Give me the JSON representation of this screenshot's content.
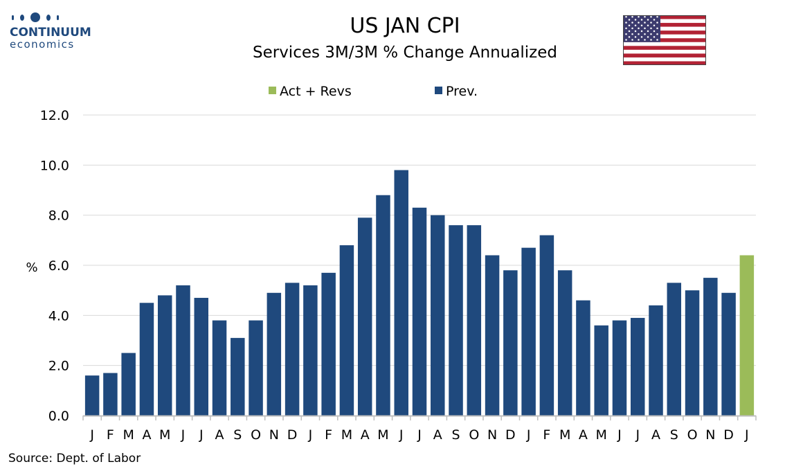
{
  "logo": {
    "line1": "CONTINUUM",
    "line2": "economics"
  },
  "flag_icon": "us-flag-icon",
  "colors": {
    "prev": "#1f497d",
    "act": "#9bbb59",
    "grid": "#d9d9d9"
  },
  "source": "Source: Dept. of Labor",
  "chart_data": {
    "type": "bar",
    "title": "US JAN CPI",
    "subtitle": "Services 3M/3M % Change Annualized",
    "xlabel": "",
    "ylabel": "%",
    "ylim": [
      0,
      12
    ],
    "yticks": [
      "0.0",
      "2.0",
      "4.0",
      "6.0",
      "8.0",
      "10.0",
      "12.0"
    ],
    "grid": true,
    "legend_position": "top",
    "legend": [
      {
        "name": "Act + Revs",
        "color": "#9bbb59"
      },
      {
        "name": "Prev.",
        "color": "#1f497d"
      }
    ],
    "categories": [
      "J",
      "F",
      "M",
      "A",
      "M",
      "J",
      "J",
      "A",
      "S",
      "O",
      "N",
      "D",
      "J",
      "F",
      "M",
      "A",
      "M",
      "J",
      "J",
      "A",
      "S",
      "O",
      "N",
      "D",
      "J",
      "F",
      "M",
      "A",
      "M",
      "J",
      "J",
      "A",
      "S",
      "O",
      "N",
      "D",
      "J"
    ],
    "values": [
      1.6,
      1.7,
      2.5,
      4.5,
      4.8,
      5.2,
      4.7,
      3.8,
      3.1,
      3.8,
      4.9,
      5.3,
      5.2,
      5.7,
      6.8,
      7.9,
      8.8,
      9.8,
      8.3,
      8.0,
      7.6,
      7.6,
      6.4,
      5.8,
      6.7,
      7.2,
      5.8,
      4.6,
      3.6,
      3.8,
      3.9,
      4.4,
      5.3,
      5.0,
      5.5,
      4.9,
      6.4
    ],
    "series_index": [
      1,
      1,
      1,
      1,
      1,
      1,
      1,
      1,
      1,
      1,
      1,
      1,
      1,
      1,
      1,
      1,
      1,
      1,
      1,
      1,
      1,
      1,
      1,
      1,
      1,
      1,
      1,
      1,
      1,
      1,
      1,
      1,
      1,
      1,
      1,
      1,
      0
    ]
  }
}
